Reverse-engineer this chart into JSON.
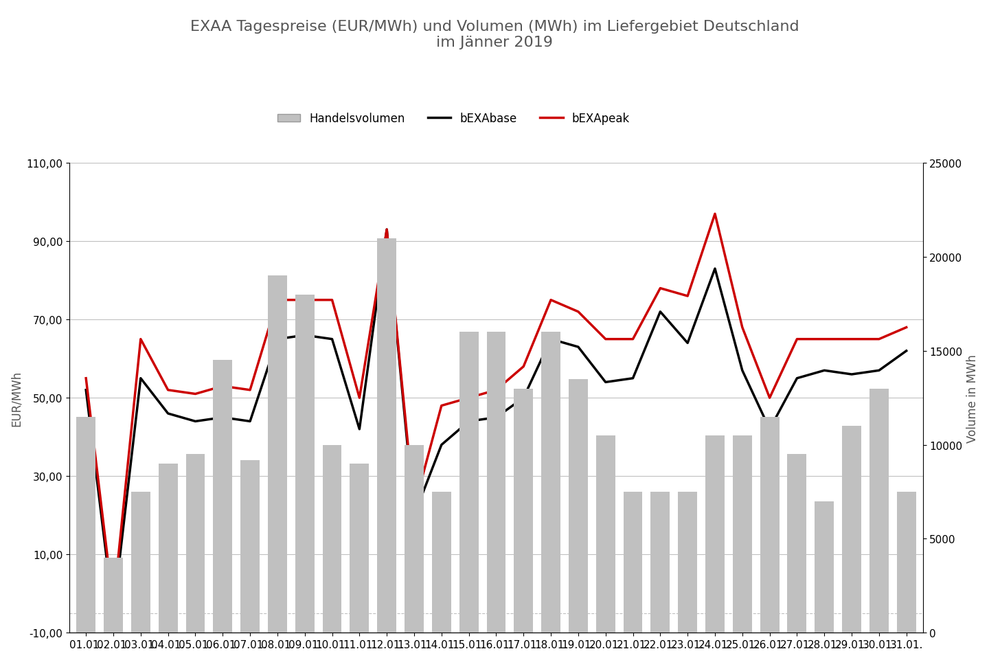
{
  "title": "EXAA Tagespreise (EUR/MWh) und Volumen (MWh) im Liefergebiet Deutschland\nim Jänner 2019",
  "ylabel_left": "EUR/MWh",
  "ylabel_right": "Volume in MWh",
  "dates": [
    "01.01.",
    "02.01.",
    "03.01.",
    "04.01.",
    "05.01.",
    "06.01.",
    "07.01.",
    "08.01.",
    "09.01.",
    "10.01.",
    "11.01.",
    "12.01.",
    "13.01.",
    "14.01.",
    "15.01.",
    "16.01.",
    "17.01.",
    "18.01.",
    "19.01.",
    "20.01.",
    "21.01.",
    "22.01.",
    "23.01.",
    "24.01.",
    "25.01.",
    "26.01.",
    "27.01.",
    "28.01.",
    "29.01.",
    "30.01.",
    "31.01."
  ],
  "bEXAbase": [
    52.0,
    -5.0,
    55.0,
    46.0,
    44.0,
    45.0,
    44.0,
    65.0,
    66.0,
    65.0,
    42.0,
    93.0,
    20.0,
    38.0,
    44.0,
    45.0,
    50.0,
    65.0,
    63.0,
    54.0,
    55.0,
    72.0,
    64.0,
    83.0,
    57.0,
    42.0,
    55.0,
    57.0,
    56.0,
    57.0,
    62.0
  ],
  "bEXApeak": [
    55.0,
    -3.0,
    65.0,
    52.0,
    51.0,
    53.0,
    52.0,
    75.0,
    75.0,
    75.0,
    50.0,
    93.0,
    22.0,
    48.0,
    50.0,
    52.0,
    58.0,
    75.0,
    72.0,
    65.0,
    65.0,
    78.0,
    76.0,
    97.0,
    68.0,
    50.0,
    65.0,
    65.0,
    65.0,
    65.0,
    68.0
  ],
  "handelsvolumen": [
    11500,
    4000,
    7500,
    9000,
    9500,
    14500,
    9200,
    19000,
    18000,
    10000,
    9000,
    21000,
    10000,
    7500,
    16000,
    16000,
    13000,
    16000,
    13500,
    10500,
    7500,
    7500,
    7500,
    10500,
    10500,
    11500,
    9500,
    7000,
    11000,
    13000,
    7500
  ],
  "ylim_left": [
    -10,
    110
  ],
  "ylim_right": [
    0,
    25000
  ],
  "yticks_left": [
    -10,
    10,
    30,
    50,
    70,
    90,
    110
  ],
  "yticks_right": [
    0,
    5000,
    10000,
    15000,
    20000,
    25000
  ],
  "bar_color": "#c0c0c0",
  "base_color": "#000000",
  "peak_color": "#cc0000",
  "background_color": "#ffffff",
  "grid_color": "#c0c0c0",
  "title_fontsize": 16,
  "label_fontsize": 12,
  "tick_fontsize": 11
}
